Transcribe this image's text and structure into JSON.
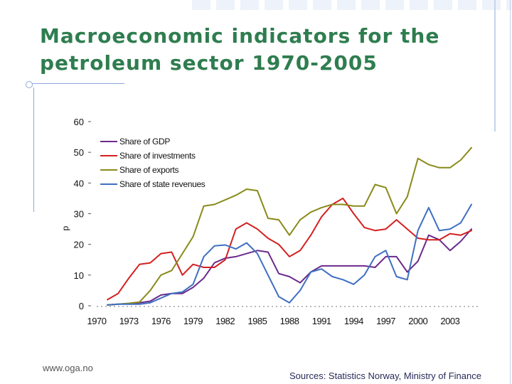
{
  "slide": {
    "title": "Macroeconomic indicators for the petroleum sector 1970-2005",
    "footer_left": "www.oga.no",
    "footer_right": "Sources: Statistics Norway, Ministry of Finance"
  },
  "chart_data": {
    "type": "line",
    "ylabel": "p",
    "ylim": [
      0,
      60
    ],
    "yticks": [
      0,
      10,
      20,
      30,
      40,
      50,
      60
    ],
    "xlim": [
      1970,
      2005
    ],
    "xticks": [
      1970,
      1973,
      1976,
      1979,
      1982,
      1985,
      1988,
      1991,
      1994,
      1997,
      2000,
      2003
    ],
    "legend_position": "top-left",
    "grid": false,
    "x": [
      1971,
      1972,
      1973,
      1974,
      1975,
      1976,
      1977,
      1978,
      1979,
      1980,
      1981,
      1982,
      1983,
      1984,
      1985,
      1986,
      1987,
      1988,
      1989,
      1990,
      1991,
      1992,
      1993,
      1994,
      1995,
      1996,
      1997,
      1998,
      1999,
      2000,
      2001,
      2002,
      2003,
      2004,
      2005
    ],
    "series": [
      {
        "name": "Share of GDP",
        "color": "#6a2b8a",
        "values": [
          0.3,
          0.5,
          0.7,
          1.0,
          1.5,
          3.5,
          4.0,
          4.0,
          6.0,
          9.0,
          14.0,
          15.5,
          16.0,
          17.0,
          18.0,
          17.5,
          10.5,
          9.5,
          7.5,
          11.0,
          13.0,
          13.0,
          13.0,
          13.0,
          13.0,
          12.5,
          16.0,
          16.0,
          11.0,
          14.5,
          23.0,
          21.5,
          18.0,
          21.0,
          25.0
        ]
      },
      {
        "name": "Share of investments",
        "color": "#d42020",
        "values": [
          2.0,
          4.0,
          9.0,
          13.5,
          14.0,
          17.0,
          17.5,
          10.0,
          13.5,
          12.5,
          12.5,
          15.0,
          25.0,
          27.0,
          25.0,
          22.0,
          20.0,
          16.0,
          18.0,
          23.0,
          29.0,
          33.0,
          35.0,
          30.0,
          25.5,
          24.5,
          25.0,
          28.0,
          25.0,
          22.0,
          21.5,
          21.5,
          23.5,
          23.0,
          24.5
        ]
      },
      {
        "name": "Share of exports",
        "color": "#8a8a1a",
        "values": [
          0.2,
          0.5,
          0.8,
          1.2,
          5.0,
          10.0,
          11.5,
          17.0,
          22.5,
          32.5,
          33.0,
          34.5,
          36.0,
          38.0,
          37.5,
          28.5,
          28.0,
          23.0,
          28.0,
          30.5,
          32.0,
          33.0,
          33.0,
          32.5,
          32.5,
          39.5,
          38.5,
          30.0,
          35.5,
          48.0,
          46.0,
          45.0,
          45.0,
          47.5,
          51.5
        ]
      },
      {
        "name": "Share of state revenues",
        "color": "#3f6fc2",
        "values": [
          0.3,
          0.5,
          0.5,
          0.5,
          1.0,
          2.5,
          4.0,
          4.5,
          7.0,
          16.0,
          19.5,
          19.8,
          18.5,
          20.5,
          17.0,
          10.0,
          3.0,
          1.0,
          5.0,
          11.0,
          12.0,
          9.5,
          8.5,
          7.0,
          10.0,
          16.0,
          18.0,
          9.5,
          8.5,
          24.5,
          32.0,
          24.5,
          25.0,
          27.0,
          33.0
        ]
      }
    ]
  }
}
